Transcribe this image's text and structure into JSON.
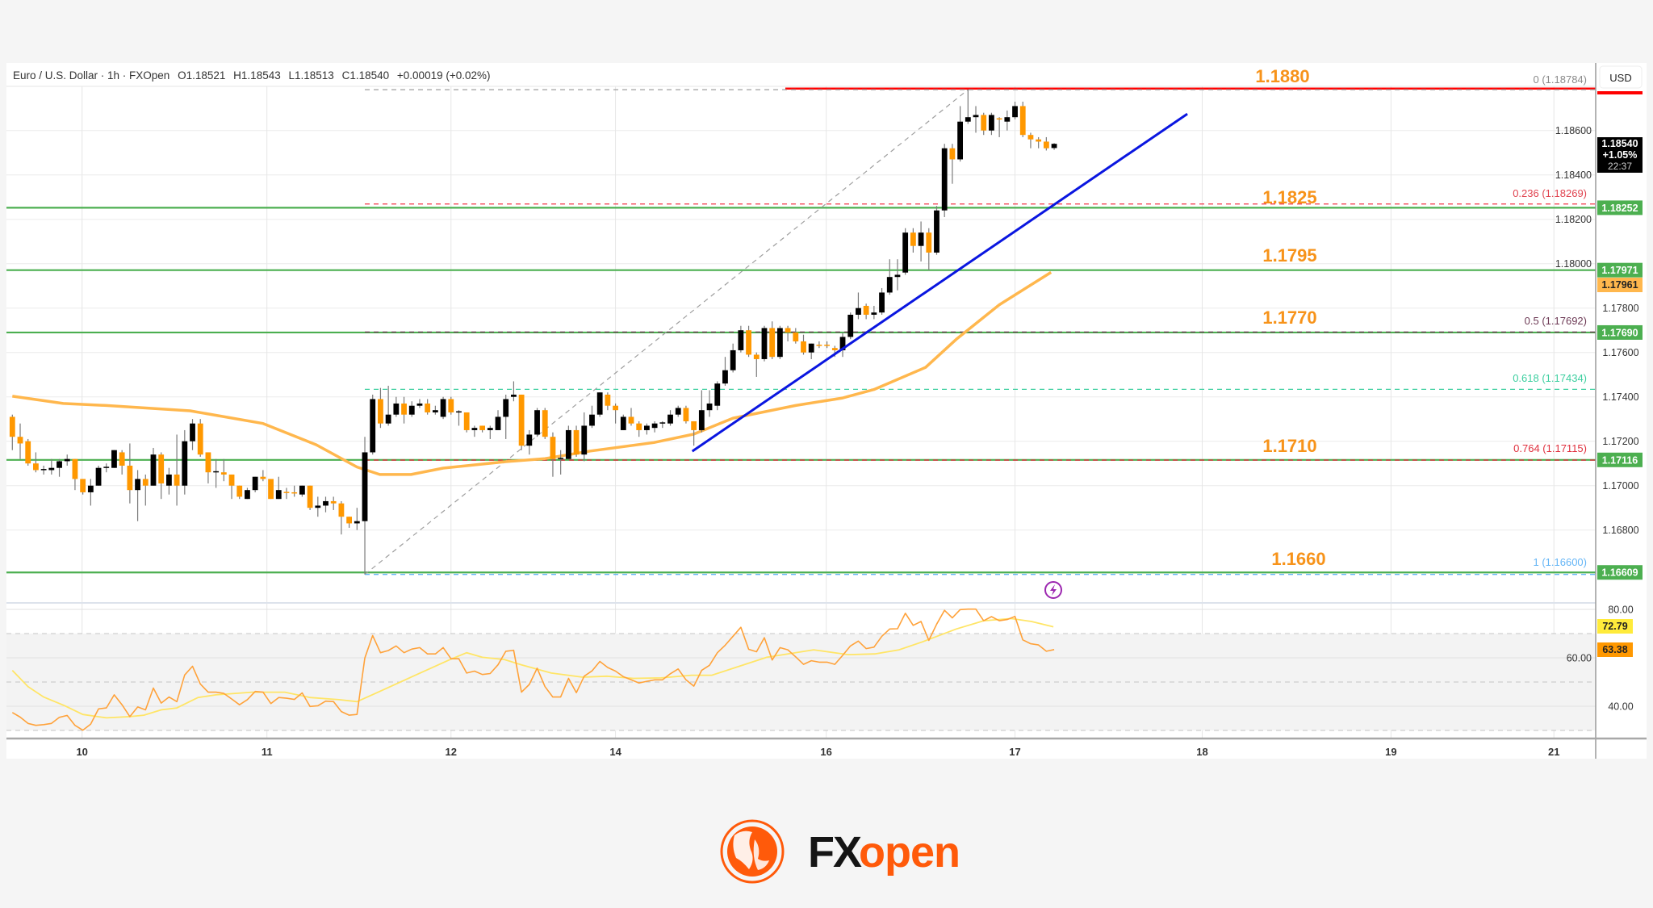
{
  "legend": {
    "symbol": "Euro / U.S. Dollar · 1h · FXOpen",
    "open": "O1.18521",
    "high": "H1.18543",
    "low": "L1.18513",
    "close": "C1.18540",
    "change": "+0.00019 (+0.02%)"
  },
  "currency_button": "USD",
  "level_labels": [
    "1.1880",
    "1.1825",
    "1.1795",
    "1.1770",
    "1.1710",
    "1.1660"
  ],
  "fib_labels": [
    "0 (1.18784)",
    "0.236 (1.18269)",
    "0.5 (1.17692)",
    "0.618 (1.17434)",
    "0.764 (1.17115)",
    "1 (1.16600)"
  ],
  "price_badges": {
    "current_price": "1.18540",
    "current_change": "+1.05%",
    "countdown": "22:37",
    "ema": "1.17961",
    "levels": [
      "1.18252",
      "1.17971",
      "1.17690",
      "1.17116",
      "1.16609"
    ],
    "rsi": "63.38",
    "rsi_ma": "72.79"
  },
  "colors": {
    "up_candle": "#000000",
    "down_candle": "#ff9800",
    "support_lines": "#4caf50",
    "resistance_line": "#ff0000",
    "trendline": "#0a16e0",
    "ema": "#ffb74d",
    "level_label": "#f7931a",
    "rsi": "#ffa23a",
    "rsi_ma": "#ffe566"
  },
  "logo": {
    "text_fx": "FX",
    "text_open": "open"
  },
  "chart_data": {
    "type": "candlestick",
    "title": "Euro / U.S. Dollar · 1h · FXOpen",
    "interval": "1h",
    "y_ticks": [
      "1.18600",
      "1.18400",
      "1.18200",
      "1.18000",
      "1.17800",
      "1.17600",
      "1.17400",
      "1.17200",
      "1.17000",
      "1.16800"
    ],
    "y_range": [
      1.165,
      1.189
    ],
    "x_ticks": [
      {
        "label": "10",
        "bar": 9.9
      },
      {
        "label": "11",
        "bar": 33.5
      },
      {
        "label": "12",
        "bar": 57.0
      },
      {
        "label": "14",
        "bar": 78.0
      },
      {
        "label": "16",
        "bar": 104.9
      },
      {
        "label": "17",
        "bar": 129.0
      },
      {
        "label": "18",
        "bar": 152.9
      },
      {
        "label": "19",
        "bar": 177.0
      },
      {
        "label": "21",
        "bar": 197.8
      }
    ],
    "grid": true,
    "ohlc": [
      [
        1.1731,
        1.1732,
        1.1716,
        1.1722
      ],
      [
        1.1722,
        1.1728,
        1.1712,
        1.1719
      ],
      [
        1.172,
        1.1721,
        1.1709,
        1.171
      ],
      [
        1.171,
        1.1715,
        1.1706,
        1.1707
      ],
      [
        1.1707,
        1.1709,
        1.1705,
        1.17075
      ],
      [
        1.1707,
        1.1712,
        1.1705,
        1.1708
      ],
      [
        1.1708,
        1.1712,
        1.1704,
        1.1711
      ],
      [
        1.1711,
        1.1714,
        1.1709,
        1.1712
      ],
      [
        1.1712,
        1.1712,
        1.1698,
        1.1703
      ],
      [
        1.1703,
        1.1703,
        1.1696,
        1.1697
      ],
      [
        1.1697,
        1.1703,
        1.1691,
        1.17
      ],
      [
        1.17,
        1.1709,
        1.17,
        1.1708
      ],
      [
        1.1708,
        1.171,
        1.1706,
        1.17085
      ],
      [
        1.1708,
        1.1716,
        1.1708,
        1.1716
      ],
      [
        1.1715,
        1.1716,
        1.1705,
        1.1709
      ],
      [
        1.1709,
        1.1719,
        1.1692,
        1.1698
      ],
      [
        1.1698,
        1.1707,
        1.1684,
        1.1703
      ],
      [
        1.1703,
        1.1705,
        1.1691,
        1.17
      ],
      [
        1.17,
        1.1717,
        1.17,
        1.1714
      ],
      [
        1.1714,
        1.1715,
        1.1694,
        1.1701
      ],
      [
        1.17,
        1.1708,
        1.1696,
        1.1705
      ],
      [
        1.1705,
        1.1723,
        1.1691,
        1.17
      ],
      [
        1.17,
        1.1725,
        1.1696,
        1.172
      ],
      [
        1.172,
        1.173,
        1.1716,
        1.1728
      ],
      [
        1.1728,
        1.173,
        1.1713,
        1.1714
      ],
      [
        1.1715,
        1.1715,
        1.1701,
        1.1706
      ],
      [
        1.1706,
        1.1712,
        1.1699,
        1.17065
      ],
      [
        1.1706,
        1.1712,
        1.1702,
        1.1705
      ],
      [
        1.1705,
        1.1705,
        1.1694,
        1.17
      ],
      [
        1.17,
        1.17,
        1.1694,
        1.1695
      ],
      [
        1.1694,
        1.1699,
        1.1694,
        1.1698
      ],
      [
        1.1698,
        1.1704,
        1.1697,
        1.1704
      ],
      [
        1.1704,
        1.1707,
        1.1702,
        1.1703
      ],
      [
        1.1703,
        1.1703,
        1.1694,
        1.1694
      ],
      [
        1.1694,
        1.1704,
        1.1694,
        1.1698
      ],
      [
        1.16972,
        1.1699,
        1.1694,
        1.1697
      ],
      [
        1.1697,
        1.17,
        1.1695,
        1.16965
      ],
      [
        1.1696,
        1.17,
        1.1695,
        1.17
      ],
      [
        1.17,
        1.17,
        1.1689,
        1.169
      ],
      [
        1.169,
        1.1695,
        1.1686,
        1.1691
      ],
      [
        1.1691,
        1.1695,
        1.1688,
        1.1693
      ],
      [
        1.1693,
        1.1695,
        1.1689,
        1.1692
      ],
      [
        1.1692,
        1.1693,
        1.1678,
        1.1686
      ],
      [
        1.1686,
        1.1686,
        1.1681,
        1.1683
      ],
      [
        1.1683,
        1.169,
        1.168,
        1.1684
      ],
      [
        1.1684,
        1.1722,
        1.166,
        1.1715
      ],
      [
        1.1715,
        1.1741,
        1.1714,
        1.1739
      ],
      [
        1.1739,
        1.1744,
        1.1726,
        1.1728
      ],
      [
        1.1728,
        1.1745,
        1.1727,
        1.1732
      ],
      [
        1.1732,
        1.174,
        1.1731,
        1.1737
      ],
      [
        1.1737,
        1.174,
        1.1728,
        1.1732
      ],
      [
        1.1732,
        1.1738,
        1.1731,
        1.1736
      ],
      [
        1.1736,
        1.1739,
        1.1735,
        1.1737
      ],
      [
        1.1737,
        1.1739,
        1.1732,
        1.1733
      ],
      [
        1.1733,
        1.1736,
        1.1732,
        1.1734
      ],
      [
        1.1731,
        1.174,
        1.173,
        1.1739
      ],
      [
        1.1739,
        1.174,
        1.1732,
        1.1733
      ],
      [
        1.1733,
        1.1734,
        1.1727,
        1.17335
      ],
      [
        1.1733,
        1.1733,
        1.1724,
        1.1725
      ],
      [
        1.1725,
        1.1727,
        1.1722,
        1.1726
      ],
      [
        1.1727,
        1.1727,
        1.1724,
        1.1725
      ],
      [
        1.1725,
        1.1727,
        1.1721,
        1.1726
      ],
      [
        1.1725,
        1.1734,
        1.1725,
        1.1731
      ],
      [
        1.1731,
        1.1741,
        1.1721,
        1.1739
      ],
      [
        1.174,
        1.1747,
        1.1738,
        1.1741
      ],
      [
        1.1741,
        1.1741,
        1.1716,
        1.1718
      ],
      [
        1.1718,
        1.1725,
        1.1714,
        1.1723
      ],
      [
        1.1723,
        1.1735,
        1.1722,
        1.1734
      ],
      [
        1.1734,
        1.1735,
        1.1721,
        1.1722
      ],
      [
        1.1722,
        1.1724,
        1.1704,
        1.1712
      ],
      [
        1.1712,
        1.1716,
        1.1705,
        1.17125
      ],
      [
        1.1712,
        1.1727,
        1.1712,
        1.1725
      ],
      [
        1.1725,
        1.1727,
        1.1713,
        1.1714
      ],
      [
        1.1714,
        1.1733,
        1.1711,
        1.1727
      ],
      [
        1.1727,
        1.1736,
        1.1726,
        1.1732
      ],
      [
        1.1732,
        1.1742,
        1.1731,
        1.1742
      ],
      [
        1.1741,
        1.1742,
        1.1734,
        1.1736
      ],
      [
        1.1736,
        1.1737,
        1.1728,
        1.1734
      ],
      [
        1.1725,
        1.1732,
        1.1725,
        1.1731
      ],
      [
        1.1731,
        1.1735,
        1.1727,
        1.1728
      ],
      [
        1.1728,
        1.1729,
        1.1722,
        1.1725
      ],
      [
        1.1725,
        1.1728,
        1.1723,
        1.1727
      ],
      [
        1.1726,
        1.1729,
        1.1724,
        1.1728
      ],
      [
        1.1728,
        1.1729,
        1.1726,
        1.17285
      ],
      [
        1.1728,
        1.1734,
        1.1727,
        1.1732
      ],
      [
        1.1732,
        1.1736,
        1.1731,
        1.1735
      ],
      [
        1.1735,
        1.1736,
        1.1728,
        1.1729
      ],
      [
        1.1729,
        1.1729,
        1.1718,
        1.1725
      ],
      [
        1.1725,
        1.1743,
        1.1724,
        1.1734
      ],
      [
        1.1734,
        1.1743,
        1.1731,
        1.1737
      ],
      [
        1.1736,
        1.1747,
        1.1734,
        1.1746
      ],
      [
        1.1746,
        1.1758,
        1.1745,
        1.1752
      ],
      [
        1.1752,
        1.1764,
        1.1751,
        1.1761
      ],
      [
        1.1761,
        1.1772,
        1.176,
        1.177
      ],
      [
        1.177,
        1.1772,
        1.1758,
        1.1759
      ],
      [
        1.1759,
        1.176,
        1.1749,
        1.1757
      ],
      [
        1.1757,
        1.1772,
        1.1756,
        1.1771
      ],
      [
        1.1771,
        1.1774,
        1.1757,
        1.1758
      ],
      [
        1.1758,
        1.1772,
        1.1757,
        1.1771
      ],
      [
        1.1771,
        1.1772,
        1.1765,
        1.1769
      ],
      [
        1.1769,
        1.1771,
        1.1764,
        1.1765
      ],
      [
        1.1765,
        1.1768,
        1.1759,
        1.176
      ],
      [
        1.176,
        1.1764,
        1.1757,
        1.1764
      ],
      [
        1.17635,
        1.1765,
        1.1762,
        1.1763
      ],
      [
        1.17635,
        1.1765,
        1.1762,
        1.1763
      ],
      [
        1.1762,
        1.1763,
        1.1758,
        1.1761
      ],
      [
        1.1761,
        1.1769,
        1.1758,
        1.1767
      ],
      [
        1.1767,
        1.1778,
        1.1766,
        1.1777
      ],
      [
        1.1777,
        1.1787,
        1.1775,
        1.178
      ],
      [
        1.1781,
        1.1782,
        1.1775,
        1.1777
      ],
      [
        1.1777,
        1.1781,
        1.1775,
        1.1778
      ],
      [
        1.1778,
        1.1789,
        1.1777,
        1.1787
      ],
      [
        1.1787,
        1.1802,
        1.1786,
        1.1794
      ],
      [
        1.1794,
        1.1802,
        1.1788,
        1.1795
      ],
      [
        1.1796,
        1.1816,
        1.1795,
        1.1814
      ],
      [
        1.1814,
        1.1816,
        1.1805,
        1.1808
      ],
      [
        1.1808,
        1.1819,
        1.1801,
        1.1814
      ],
      [
        1.1814,
        1.1816,
        1.1797,
        1.1805
      ],
      [
        1.1805,
        1.1826,
        1.1804,
        1.1824
      ],
      [
        1.1824,
        1.1854,
        1.1821,
        1.1852
      ],
      [
        1.1852,
        1.1854,
        1.1836,
        1.1847
      ],
      [
        1.1847,
        1.1871,
        1.1846,
        1.1864
      ],
      [
        1.1864,
        1.18784,
        1.1863,
        1.1866
      ],
      [
        1.1866,
        1.1871,
        1.1859,
        1.1867
      ],
      [
        1.1867,
        1.1868,
        1.1858,
        1.186
      ],
      [
        1.186,
        1.1868,
        1.1858,
        1.1867
      ],
      [
        1.18655,
        1.1866,
        1.1857,
        1.1865
      ],
      [
        1.1864,
        1.1869,
        1.186,
        1.1866
      ],
      [
        1.1866,
        1.1873,
        1.1865,
        1.1871
      ],
      [
        1.1871,
        1.1873,
        1.1857,
        1.1858
      ],
      [
        1.1858,
        1.1859,
        1.1852,
        1.1856
      ],
      [
        1.1856,
        1.1857,
        1.1852,
        1.1855
      ],
      [
        1.1855,
        1.1857,
        1.1851,
        1.1852
      ],
      [
        1.18521,
        1.18543,
        1.18513,
        1.1854
      ]
    ],
    "ema": [
      [
        1,
        1.17403
      ],
      [
        7.5,
        1.1737
      ],
      [
        13,
        1.17361
      ],
      [
        23.7,
        1.17337
      ],
      [
        33,
        1.1728
      ],
      [
        39.8,
        1.17184
      ],
      [
        45,
        1.17084
      ],
      [
        47.9,
        1.1705
      ],
      [
        51.9,
        1.1705
      ],
      [
        56,
        1.17079
      ],
      [
        64,
        1.17108
      ],
      [
        69,
        1.17122
      ],
      [
        74.8,
        1.17156
      ],
      [
        82.9,
        1.17194
      ],
      [
        88,
        1.17232
      ],
      [
        93,
        1.17304
      ],
      [
        101,
        1.17361
      ],
      [
        107,
        1.17395
      ],
      [
        111,
        1.17433
      ],
      [
        117.6,
        1.17533
      ],
      [
        121.6,
        1.17662
      ],
      [
        127,
        1.17815
      ],
      [
        133.6,
        1.17961
      ]
    ],
    "horizontal_levels": {
      "resistance": 1.188,
      "support": [
        1.18252,
        1.17971,
        1.1769,
        1.17116,
        1.16609
      ]
    },
    "trendline": {
      "from": [
        87.8,
        1.17155
      ],
      "to": [
        151,
        1.18675
      ]
    },
    "fibonacci": {
      "from": [
        46,
        1.166
      ],
      "to": [
        123,
        1.18784
      ],
      "levels": [
        {
          "ratio": 0,
          "price": 1.18784,
          "color": "#9e9e9e"
        },
        {
          "ratio": 0.236,
          "price": 1.18269,
          "color": "#f23645"
        },
        {
          "ratio": 0.5,
          "price": 1.17692,
          "color": "#6d3a55"
        },
        {
          "ratio": 0.618,
          "price": 1.17434,
          "color": "#3ccf9f"
        },
        {
          "ratio": 0.764,
          "price": 1.17115,
          "color": "#e0303e"
        },
        {
          "ratio": 1,
          "price": 1.166,
          "color": "#64b5f6"
        }
      ]
    },
    "rsi": {
      "y_ticks": [
        "80.00",
        "60.00",
        "40.00"
      ],
      "y_range": [
        27,
        85
      ],
      "bands": [
        70,
        50,
        30
      ],
      "values": [
        37.4,
        35.5,
        32.9,
        32.1,
        32.4,
        32.9,
        35.4,
        36.2,
        32.1,
        30.1,
        32.6,
        38.9,
        39.3,
        44.7,
        40.6,
        35.7,
        39.7,
        38.5,
        47.5,
        41.3,
        43.8,
        41.9,
        52.9,
        56.5,
        49.2,
        45.8,
        45.8,
        45.3,
        43,
        40.6,
        42.7,
        46.1,
        45.8,
        41.1,
        43.6,
        43.3,
        42.8,
        45.5,
        39.9,
        40.2,
        42.1,
        41.9,
        37.8,
        36.3,
        36.6,
        59.9,
        69.2,
        62.1,
        63,
        64.9,
        62.1,
        63.6,
        64.2,
        61.6,
        61.6,
        64.2,
        59.6,
        59.6,
        53.7,
        54.5,
        53.1,
        53.5,
        57.1,
        62.7,
        63.1,
        45.8,
        49,
        55.7,
        48.1,
        43.8,
        43.8,
        51.5,
        45.6,
        52.4,
        54.6,
        58.5,
        56,
        54.5,
        52.2,
        50.9,
        49.6,
        50.3,
        50.9,
        50.9,
        53.4,
        55.4,
        50.9,
        48.3,
        54.8,
        56.9,
        62.1,
        65.2,
        68.9,
        72.6,
        63.5,
        62.5,
        68.3,
        59.1,
        64.2,
        63.3,
        60.4,
        57.3,
        58.8,
        58.2,
        58.2,
        57.3,
        61,
        64.9,
        66.9,
        63.8,
        64.4,
        68.9,
        71.9,
        72,
        78.4,
        73.4,
        75,
        67.2,
        73.9,
        79.6,
        76.5,
        79.9,
        80.1,
        80.1,
        75.3,
        77,
        75.3,
        75.8,
        77.1,
        67.4,
        65.8,
        65.3,
        62.7,
        63.4
      ],
      "ma": [
        [
          1,
          54.8
        ],
        [
          3,
          48.1
        ],
        [
          5,
          43.8
        ],
        [
          7.7,
          40.2
        ],
        [
          10,
          36.6
        ],
        [
          13,
          35.2
        ],
        [
          16,
          35.7
        ],
        [
          17.8,
          36.3
        ],
        [
          20,
          38.5
        ],
        [
          22,
          39.3
        ],
        [
          24.7,
          43.6
        ],
        [
          27,
          44.7
        ],
        [
          31.6,
          45.8
        ],
        [
          35.8,
          45.8
        ],
        [
          39,
          43.6
        ],
        [
          42.7,
          42.7
        ],
        [
          45,
          41.9
        ],
        [
          47.7,
          45.8
        ],
        [
          52.3,
          52.6
        ],
        [
          56.9,
          59.3
        ],
        [
          59,
          62.1
        ],
        [
          61,
          60.2
        ],
        [
          63.8,
          59.3
        ],
        [
          66,
          57.1
        ],
        [
          69.8,
          53.7
        ],
        [
          73.8,
          52
        ],
        [
          76.9,
          52.4
        ],
        [
          80.3,
          51.5
        ],
        [
          83.8,
          51.7
        ],
        [
          87.7,
          52.8
        ],
        [
          90.3,
          52.8
        ],
        [
          93.8,
          56.5
        ],
        [
          97.3,
          60.2
        ],
        [
          103.3,
          63.3
        ],
        [
          107.7,
          61.3
        ],
        [
          111.1,
          61.6
        ],
        [
          114.2,
          63.3
        ],
        [
          117.2,
          66.6
        ],
        [
          121.5,
          71.9
        ],
        [
          125,
          75.3
        ],
        [
          128.5,
          76.2
        ],
        [
          131.1,
          75
        ],
        [
          133.9,
          72.8
        ]
      ]
    }
  }
}
